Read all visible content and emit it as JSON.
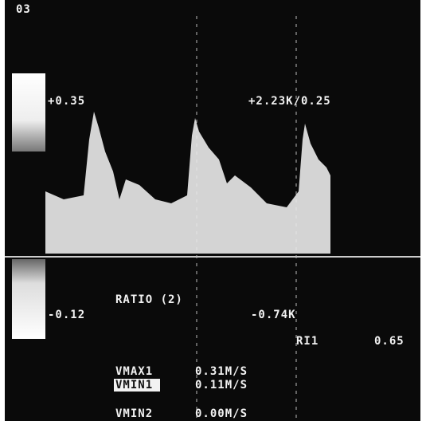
{
  "header": {
    "label": "03"
  },
  "scale": {
    "top": "+0.35",
    "bottom": "-0.12"
  },
  "cursor": {
    "top": "+2.23K/0.25",
    "bottom": "-0.74K"
  },
  "ratio": "RATIO (2)",
  "ri": {
    "label": "RI1",
    "value": "0.65"
  },
  "measurements": [
    {
      "label": "VMAX1",
      "value": "0.31M/S"
    },
    {
      "label": "VMIN1",
      "value": "0.11M/S"
    },
    {
      "label": "VMIN2",
      "value": "0.00M/S"
    }
  ]
}
